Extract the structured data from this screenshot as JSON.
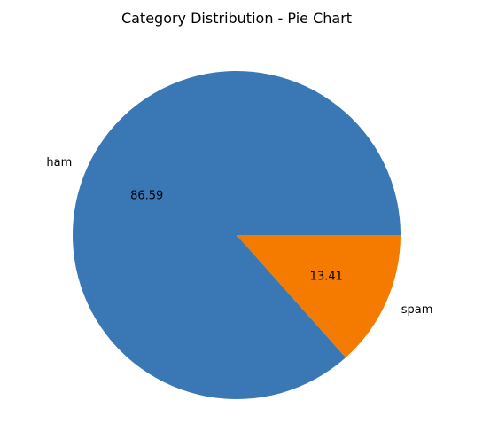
{
  "chart_data": {
    "type": "pie",
    "title": "Category Distribution - Pie Chart",
    "categories": [
      "ham",
      "spam"
    ],
    "values": [
      86.59,
      13.41
    ],
    "value_labels": [
      "86.59",
      "13.41"
    ],
    "colors": [
      "#3a78b5",
      "#f47b00"
    ],
    "start_angle_deg": 0,
    "direction": "counterclockwise",
    "legend": "none"
  }
}
